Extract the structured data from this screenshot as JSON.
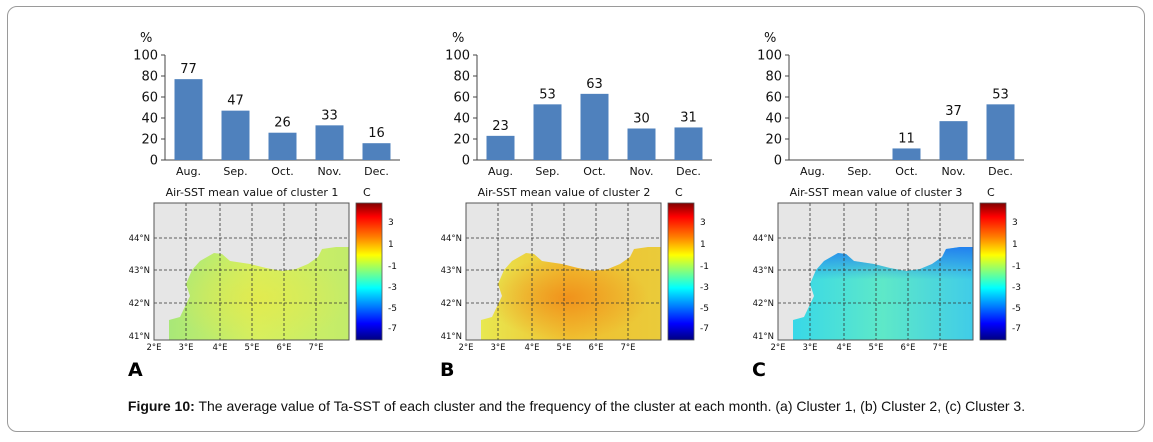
{
  "caption": {
    "label": "Figure 10:",
    "text": "The average value of Ta-SST of each cluster and the frequency of the cluster at each month. (a) Cluster 1, (b) Cluster 2, (c) Cluster 3."
  },
  "colors": {
    "bar": "#4f81bd",
    "land": "#e6e6e6",
    "colorbar_stops": [
      "#000080",
      "#0000ff",
      "#0080ff",
      "#00ffff",
      "#80ff80",
      "#ffff00",
      "#ff8000",
      "#ff0000",
      "#800000"
    ]
  },
  "chart_data": [
    {
      "type": "bar",
      "panel_letter": "A",
      "ylabel": "%",
      "ylim": [
        0,
        100
      ],
      "yticks": [
        "0",
        "20",
        "40",
        "60",
        "80",
        "100"
      ],
      "categories": [
        "Aug.",
        "Sep.",
        "Oct.",
        "Nov.",
        "Dec."
      ],
      "values": [
        77,
        47,
        26,
        33,
        16
      ],
      "data_labels": [
        "77",
        "47",
        "26",
        "33",
        "16"
      ],
      "map": {
        "title": "Air-SST mean value of cluster 1",
        "unit": "C",
        "lat_labels": [
          "44°N",
          "43°N",
          "42°N",
          "41°N"
        ],
        "lon_labels": [
          "2°E",
          "3°E",
          "4°E",
          "5°E",
          "6°E",
          "7°E"
        ],
        "colorbar_ticks": [
          "3",
          "1",
          "-1",
          "-3",
          "-5",
          "-7"
        ],
        "field": "mostly +1 to 2 C (yellow-green)"
      }
    },
    {
      "type": "bar",
      "panel_letter": "B",
      "ylabel": "%",
      "ylim": [
        0,
        100
      ],
      "yticks": [
        "0",
        "20",
        "40",
        "60",
        "80",
        "100"
      ],
      "categories": [
        "Aug.",
        "Sep.",
        "Oct.",
        "Nov.",
        "Dec."
      ],
      "values": [
        23,
        53,
        63,
        30,
        31
      ],
      "data_labels": [
        "23",
        "53",
        "63",
        "30",
        "31"
      ],
      "map": {
        "title": "Air-SST mean value of cluster 2",
        "unit": "C",
        "lat_labels": [
          "44°N",
          "43°N",
          "42°N",
          "41°N"
        ],
        "lon_labels": [
          "2°E",
          "3°E",
          "4°E",
          "5°E",
          "6°E",
          "7°E"
        ],
        "colorbar_ticks": [
          "3",
          "1",
          "-1",
          "-3",
          "-5",
          "-7"
        ],
        "field": "about +2 to 3 C (yellow-orange), warmest in centre"
      }
    },
    {
      "type": "bar",
      "panel_letter": "C",
      "ylabel": "%",
      "ylim": [
        0,
        100
      ],
      "yticks": [
        "0",
        "20",
        "40",
        "60",
        "80",
        "100"
      ],
      "categories": [
        "Aug.",
        "Sep.",
        "Oct.",
        "Nov.",
        "Dec."
      ],
      "values": [
        0,
        0,
        11,
        37,
        53
      ],
      "data_labels": [
        "",
        "",
        "11",
        "37",
        "53"
      ],
      "map": {
        "title": "Air-SST mean value of cluster 3",
        "unit": "C",
        "lat_labels": [
          "44°N",
          "43°N",
          "42°N",
          "41°N"
        ],
        "lon_labels": [
          "2°E",
          "3°E",
          "4°E",
          "5°E",
          "6°E",
          "7°E"
        ],
        "colorbar_ticks": [
          "3",
          "1",
          "-1",
          "-3",
          "-5",
          "-7"
        ],
        "field": "about -2 to -4 C (cyan-blue), coldest near coast"
      }
    }
  ]
}
